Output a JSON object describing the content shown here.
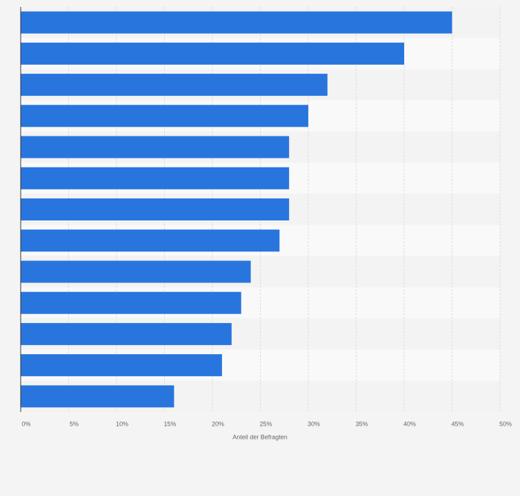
{
  "chart_data": {
    "type": "bar",
    "orientation": "horizontal",
    "x_label": "Anteil der Befragten",
    "categories": [
      null,
      null,
      null,
      null,
      null,
      null,
      null,
      null,
      null,
      null,
      null,
      null,
      null
    ],
    "values": [
      45,
      40,
      32,
      30,
      28,
      28,
      28,
      27,
      24,
      23,
      22,
      21,
      16
    ],
    "color": "#2876dd",
    "xlim": [
      0,
      50
    ],
    "xticks": [
      {
        "value": 0,
        "label": "0%"
      },
      {
        "value": 5,
        "label": "5%"
      },
      {
        "value": 10,
        "label": "10%"
      },
      {
        "value": 15,
        "label": "15%"
      },
      {
        "value": 20,
        "label": "20%"
      },
      {
        "value": 25,
        "label": "25%"
      },
      {
        "value": 30,
        "label": "30%"
      },
      {
        "value": 35,
        "label": "35%"
      },
      {
        "value": 40,
        "label": "40%"
      },
      {
        "value": 45,
        "label": "45%"
      },
      {
        "value": 50,
        "label": "50%"
      }
    ],
    "grid": true
  }
}
